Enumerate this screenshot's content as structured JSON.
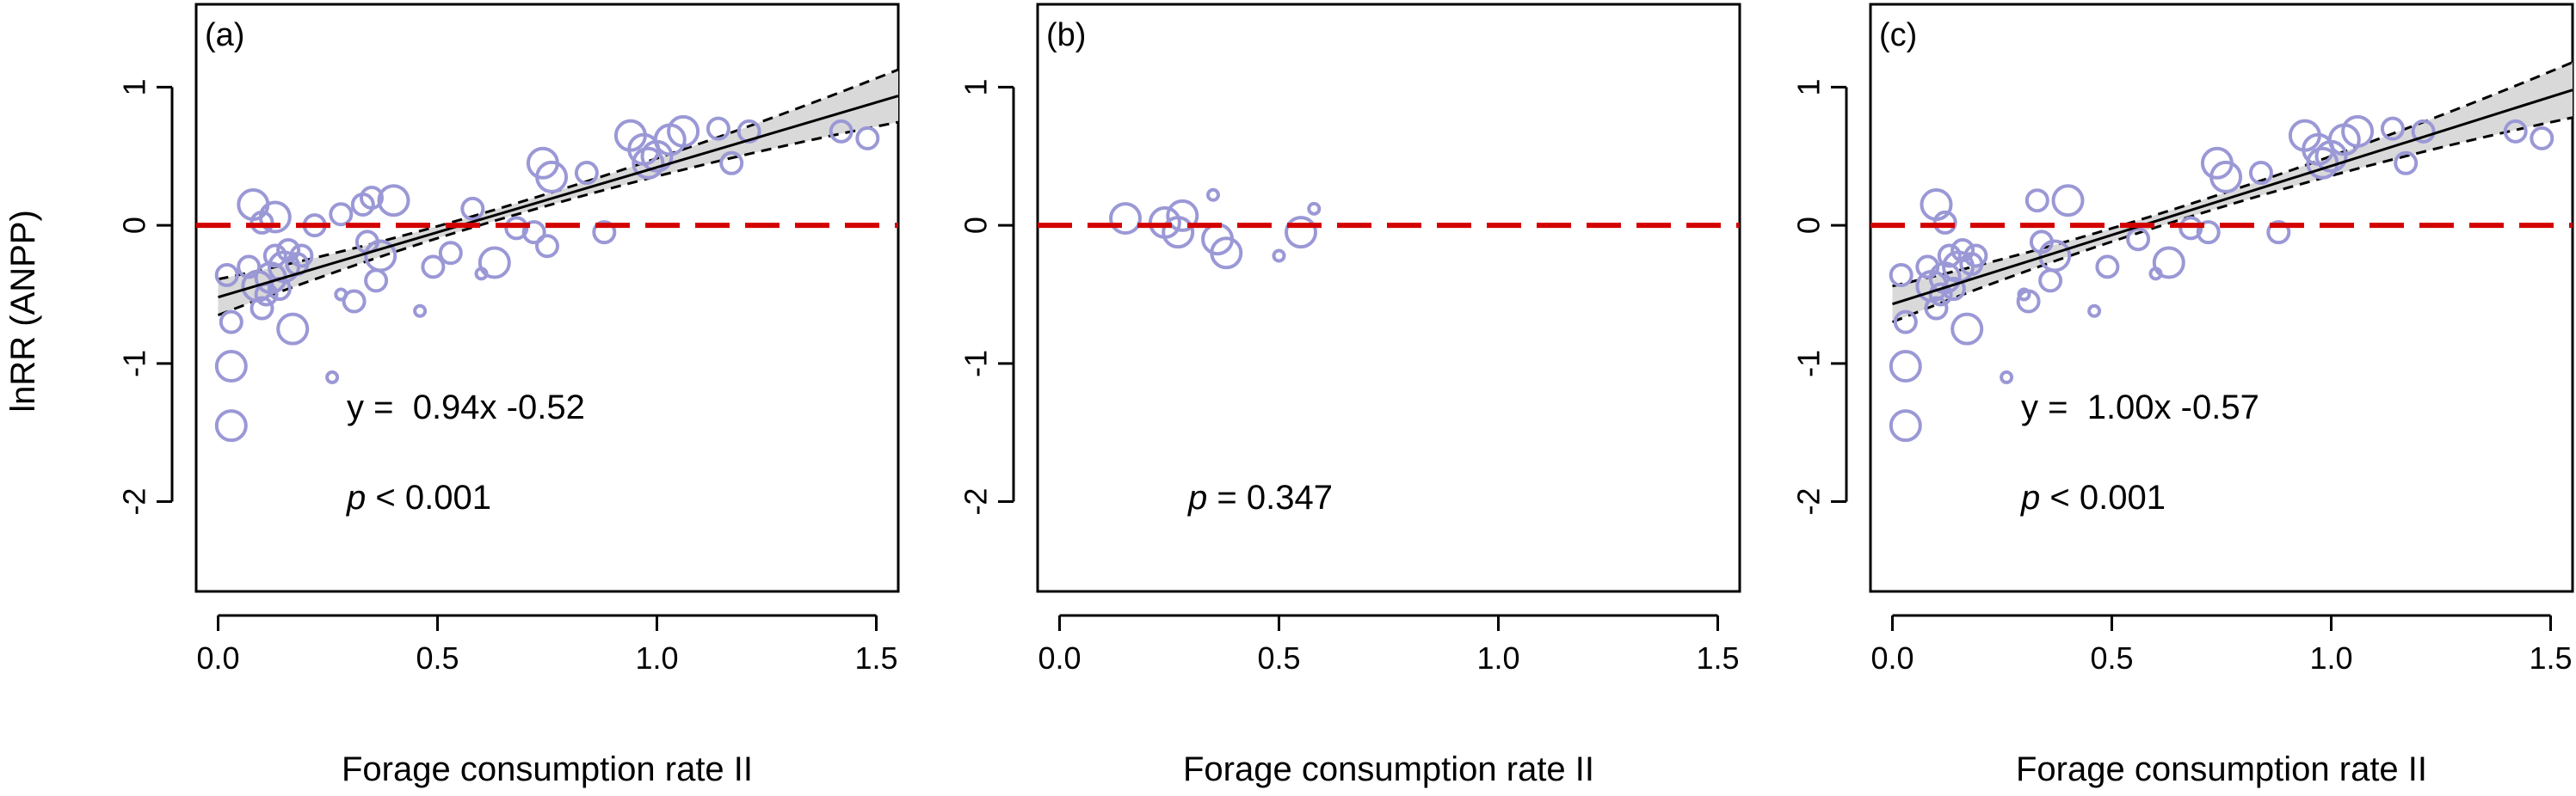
{
  "figure": {
    "ylabel": "lnRR (ANPP)"
  },
  "colors": {
    "point": "#9b98d6",
    "zero_line": "#d40000",
    "ci_band": "#d9d9d9",
    "fit_line": "#000000"
  },
  "chart_data": [
    {
      "type": "scatter",
      "panel_label": "(a)",
      "xlabel": "Forage consumption rate II",
      "ylabel": "lnRR (ANPP)",
      "xlim": [
        -0.05,
        1.55
      ],
      "ylim": [
        -2.65,
        1.6
      ],
      "xticks": [
        0.0,
        0.5,
        1.0,
        1.5
      ],
      "xtick_labels": [
        "0.0",
        "0.5",
        "1.0",
        "1.5"
      ],
      "yticks": [
        -2,
        -1,
        0,
        1
      ],
      "ytick_labels": [
        "-2",
        "-1",
        "0",
        "1"
      ],
      "zero_line": 0,
      "fit": {
        "slope": 0.94,
        "intercept": -0.52,
        "x_range": [
          0.0,
          1.55
        ],
        "ci_halfwidth_ends": [
          0.13,
          0.19
        ],
        "ci_halfwidth_mid": 0.04,
        "ci_mid_x": 0.62
      },
      "equation_prefix": "y =",
      "equation_rhs": "0.94x -0.52",
      "p_symbol": "p",
      "p_text": "< 0.001",
      "points": [
        {
          "x": 0.03,
          "y": -1.45,
          "r": 3
        },
        {
          "x": 0.03,
          "y": -1.02,
          "r": 3
        },
        {
          "x": 0.03,
          "y": -0.7,
          "r": 2
        },
        {
          "x": 0.02,
          "y": -0.36,
          "r": 2
        },
        {
          "x": 0.08,
          "y": 0.15,
          "r": 3
        },
        {
          "x": 0.1,
          "y": 0.02,
          "r": 2
        },
        {
          "x": 0.13,
          "y": 0.06,
          "r": 3
        },
        {
          "x": 0.07,
          "y": -0.3,
          "r": 2
        },
        {
          "x": 0.09,
          "y": -0.44,
          "r": 3
        },
        {
          "x": 0.1,
          "y": -0.6,
          "r": 2
        },
        {
          "x": 0.11,
          "y": -0.5,
          "r": 2
        },
        {
          "x": 0.12,
          "y": -0.38,
          "r": 3
        },
        {
          "x": 0.13,
          "y": -0.22,
          "r": 2
        },
        {
          "x": 0.14,
          "y": -0.46,
          "r": 2
        },
        {
          "x": 0.15,
          "y": -0.3,
          "r": 3
        },
        {
          "x": 0.16,
          "y": -0.18,
          "r": 2
        },
        {
          "x": 0.17,
          "y": -0.75,
          "r": 3
        },
        {
          "x": 0.18,
          "y": -0.28,
          "r": 2
        },
        {
          "x": 0.19,
          "y": -0.22,
          "r": 2
        },
        {
          "x": 0.22,
          "y": 0.0,
          "r": 2
        },
        {
          "x": 0.26,
          "y": -1.1,
          "r": 1
        },
        {
          "x": 0.28,
          "y": 0.08,
          "r": 2
        },
        {
          "x": 0.28,
          "y": -0.5,
          "r": 1
        },
        {
          "x": 0.31,
          "y": -0.55,
          "r": 2
        },
        {
          "x": 0.33,
          "y": 0.15,
          "r": 2
        },
        {
          "x": 0.35,
          "y": 0.2,
          "r": 2
        },
        {
          "x": 0.34,
          "y": -0.12,
          "r": 2
        },
        {
          "x": 0.36,
          "y": -0.4,
          "r": 2
        },
        {
          "x": 0.37,
          "y": -0.22,
          "r": 3
        },
        {
          "x": 0.4,
          "y": 0.18,
          "r": 3
        },
        {
          "x": 0.46,
          "y": -0.62,
          "r": 1
        },
        {
          "x": 0.49,
          "y": -0.3,
          "r": 2
        },
        {
          "x": 0.53,
          "y": -0.2,
          "r": 2
        },
        {
          "x": 0.58,
          "y": 0.12,
          "r": 2
        },
        {
          "x": 0.6,
          "y": -0.35,
          "r": 1
        },
        {
          "x": 0.63,
          "y": -0.27,
          "r": 3
        },
        {
          "x": 0.68,
          "y": -0.02,
          "r": 2
        },
        {
          "x": 0.72,
          "y": -0.05,
          "r": 2
        },
        {
          "x": 0.74,
          "y": 0.45,
          "r": 3
        },
        {
          "x": 0.76,
          "y": 0.35,
          "r": 3
        },
        {
          "x": 0.75,
          "y": -0.15,
          "r": 2
        },
        {
          "x": 0.84,
          "y": 0.38,
          "r": 2
        },
        {
          "x": 0.88,
          "y": -0.05,
          "r": 2
        },
        {
          "x": 0.94,
          "y": 0.65,
          "r": 3
        },
        {
          "x": 0.97,
          "y": 0.55,
          "r": 3
        },
        {
          "x": 0.98,
          "y": 0.45,
          "r": 3
        },
        {
          "x": 1.0,
          "y": 0.5,
          "r": 3
        },
        {
          "x": 1.03,
          "y": 0.62,
          "r": 3
        },
        {
          "x": 1.06,
          "y": 0.68,
          "r": 3
        },
        {
          "x": 1.14,
          "y": 0.7,
          "r": 2
        },
        {
          "x": 1.17,
          "y": 0.45,
          "r": 2
        },
        {
          "x": 1.21,
          "y": 0.68,
          "r": 2
        },
        {
          "x": 1.42,
          "y": 0.68,
          "r": 2
        },
        {
          "x": 1.48,
          "y": 0.63,
          "r": 2
        }
      ]
    },
    {
      "type": "scatter",
      "panel_label": "(b)",
      "xlabel": "Forage consumption rate II",
      "ylabel": "",
      "xlim": [
        -0.05,
        1.55
      ],
      "ylim": [
        -2.65,
        1.6
      ],
      "xticks": [
        0.0,
        0.5,
        1.0,
        1.5
      ],
      "xtick_labels": [
        "0.0",
        "0.5",
        "1.0",
        "1.5"
      ],
      "yticks": [
        -2,
        -1,
        0,
        1
      ],
      "ytick_labels": [
        "-2",
        "-1",
        "0",
        "1"
      ],
      "zero_line": 0,
      "fit": null,
      "equation_prefix": "",
      "equation_rhs": "",
      "p_symbol": "p",
      "p_text": "= 0.347",
      "points": [
        {
          "x": 0.15,
          "y": 0.05,
          "r": 3
        },
        {
          "x": 0.24,
          "y": 0.02,
          "r": 3
        },
        {
          "x": 0.27,
          "y": -0.05,
          "r": 3
        },
        {
          "x": 0.28,
          "y": 0.07,
          "r": 3
        },
        {
          "x": 0.35,
          "y": 0.22,
          "r": 1
        },
        {
          "x": 0.36,
          "y": -0.1,
          "r": 3
        },
        {
          "x": 0.38,
          "y": -0.2,
          "r": 3
        },
        {
          "x": 0.5,
          "y": -0.22,
          "r": 1
        },
        {
          "x": 0.55,
          "y": -0.05,
          "r": 3
        },
        {
          "x": 0.58,
          "y": 0.12,
          "r": 1
        }
      ]
    },
    {
      "type": "scatter",
      "panel_label": "(c)",
      "xlabel": "Forage consumption rate II",
      "ylabel": "",
      "xlim": [
        -0.05,
        1.55
      ],
      "ylim": [
        -2.65,
        1.6
      ],
      "xticks": [
        0.0,
        0.5,
        1.0,
        1.5
      ],
      "xtick_labels": [
        "0.0",
        "0.5",
        "1.0",
        "1.5"
      ],
      "yticks": [
        -2,
        -1,
        0,
        1
      ],
      "ytick_labels": [
        "-2",
        "-1",
        "0",
        "1"
      ],
      "zero_line": 0,
      "fit": {
        "slope": 1.0,
        "intercept": -0.57,
        "x_range": [
          0.0,
          1.55
        ],
        "ci_halfwidth_ends": [
          0.13,
          0.2
        ],
        "ci_halfwidth_mid": 0.045,
        "ci_mid_x": 0.62
      },
      "equation_prefix": "y =",
      "equation_rhs": "1.00x -0.57",
      "p_symbol": "p",
      "p_text": "< 0.001",
      "points": [
        {
          "x": 0.03,
          "y": -1.45,
          "r": 3
        },
        {
          "x": 0.03,
          "y": -1.02,
          "r": 3
        },
        {
          "x": 0.03,
          "y": -0.7,
          "r": 2
        },
        {
          "x": 0.02,
          "y": -0.36,
          "r": 2
        },
        {
          "x": 0.1,
          "y": 0.15,
          "r": 3
        },
        {
          "x": 0.12,
          "y": 0.02,
          "r": 2
        },
        {
          "x": 0.08,
          "y": -0.3,
          "r": 2
        },
        {
          "x": 0.09,
          "y": -0.44,
          "r": 3
        },
        {
          "x": 0.1,
          "y": -0.6,
          "r": 2
        },
        {
          "x": 0.11,
          "y": -0.5,
          "r": 2
        },
        {
          "x": 0.12,
          "y": -0.38,
          "r": 3
        },
        {
          "x": 0.13,
          "y": -0.22,
          "r": 2
        },
        {
          "x": 0.14,
          "y": -0.46,
          "r": 2
        },
        {
          "x": 0.15,
          "y": -0.3,
          "r": 3
        },
        {
          "x": 0.16,
          "y": -0.18,
          "r": 2
        },
        {
          "x": 0.17,
          "y": -0.75,
          "r": 3
        },
        {
          "x": 0.18,
          "y": -0.28,
          "r": 2
        },
        {
          "x": 0.19,
          "y": -0.22,
          "r": 2
        },
        {
          "x": 0.26,
          "y": -1.1,
          "r": 1
        },
        {
          "x": 0.3,
          "y": -0.5,
          "r": 1
        },
        {
          "x": 0.31,
          "y": -0.55,
          "r": 2
        },
        {
          "x": 0.33,
          "y": 0.18,
          "r": 2
        },
        {
          "x": 0.34,
          "y": -0.12,
          "r": 2
        },
        {
          "x": 0.36,
          "y": -0.4,
          "r": 2
        },
        {
          "x": 0.37,
          "y": -0.22,
          "r": 3
        },
        {
          "x": 0.4,
          "y": 0.18,
          "r": 3
        },
        {
          "x": 0.46,
          "y": -0.62,
          "r": 1
        },
        {
          "x": 0.49,
          "y": -0.3,
          "r": 2
        },
        {
          "x": 0.56,
          "y": -0.1,
          "r": 2
        },
        {
          "x": 0.6,
          "y": -0.35,
          "r": 1
        },
        {
          "x": 0.63,
          "y": -0.27,
          "r": 3
        },
        {
          "x": 0.68,
          "y": -0.02,
          "r": 2
        },
        {
          "x": 0.72,
          "y": -0.05,
          "r": 2
        },
        {
          "x": 0.74,
          "y": 0.45,
          "r": 3
        },
        {
          "x": 0.76,
          "y": 0.35,
          "r": 3
        },
        {
          "x": 0.84,
          "y": 0.38,
          "r": 2
        },
        {
          "x": 0.88,
          "y": -0.05,
          "r": 2
        },
        {
          "x": 0.94,
          "y": 0.65,
          "r": 3
        },
        {
          "x": 0.97,
          "y": 0.55,
          "r": 3
        },
        {
          "x": 0.98,
          "y": 0.45,
          "r": 3
        },
        {
          "x": 1.0,
          "y": 0.5,
          "r": 3
        },
        {
          "x": 1.03,
          "y": 0.62,
          "r": 3
        },
        {
          "x": 1.06,
          "y": 0.68,
          "r": 3
        },
        {
          "x": 1.14,
          "y": 0.7,
          "r": 2
        },
        {
          "x": 1.17,
          "y": 0.45,
          "r": 2
        },
        {
          "x": 1.21,
          "y": 0.68,
          "r": 2
        },
        {
          "x": 1.42,
          "y": 0.68,
          "r": 2
        },
        {
          "x": 1.48,
          "y": 0.63,
          "r": 2
        }
      ]
    }
  ]
}
